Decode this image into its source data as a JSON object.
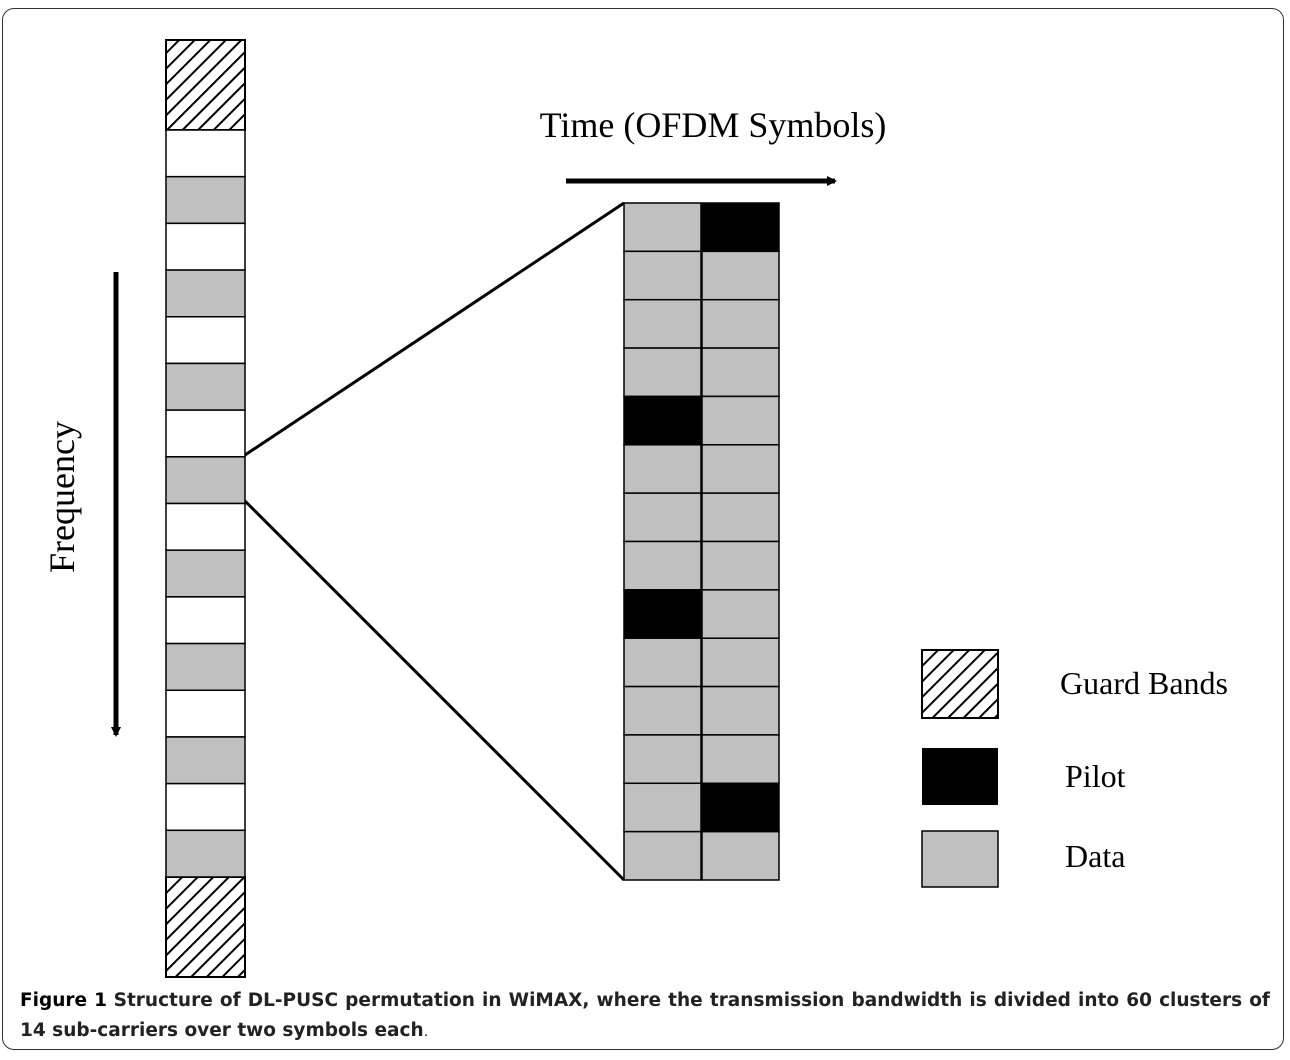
{
  "figure": {
    "time_label": "Time (OFDM Symbols)",
    "frequency_label": "Frequency",
    "legend": {
      "guard": "Guard Bands",
      "pilot": "Pilot",
      "data": "Data"
    },
    "caption": {
      "label": "Figure 1",
      "text": "Structure of DL-PUSC permutation in WiMAX, where the transmission bandwidth is divided into 60 clusters of 14 sub-carriers over two symbols each",
      "end": "."
    }
  }
}
